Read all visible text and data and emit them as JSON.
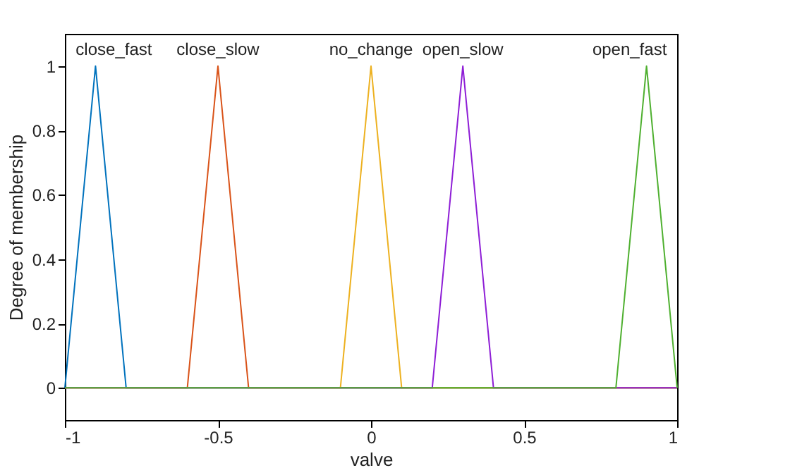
{
  "chart_data": {
    "type": "line",
    "xlabel": "valve",
    "ylabel": "Degree of membership",
    "xlim": [
      -1,
      1
    ],
    "xticks": [
      -1,
      -0.5,
      0,
      0.5,
      1
    ],
    "ylim": [
      -0.1,
      1.1
    ],
    "yticks": [
      0,
      0.2,
      0.4,
      0.6,
      0.8,
      1
    ],
    "grid": false,
    "legend": false,
    "marker": "none",
    "line_style": "solid",
    "series": [
      {
        "name": "close_fast",
        "color": "#0072bd",
        "x": [
          -1,
          -0.9,
          -0.8,
          1
        ],
        "values": [
          0,
          1,
          0,
          0
        ]
      },
      {
        "name": "close_slow",
        "color": "#d95319",
        "x": [
          -1,
          -0.6,
          -0.5,
          -0.4,
          1
        ],
        "values": [
          0,
          0,
          1,
          0,
          0
        ]
      },
      {
        "name": "no_change",
        "color": "#edb120",
        "x": [
          -1,
          -0.1,
          0,
          0.1,
          1
        ],
        "values": [
          0,
          0,
          1,
          0,
          0
        ]
      },
      {
        "name": "open_slow",
        "color": "#8e1ed6",
        "x": [
          -1,
          0.2,
          0.3,
          0.4,
          1
        ],
        "values": [
          0,
          0,
          1,
          0,
          0
        ]
      },
      {
        "name": "open_fast",
        "color": "#4fb030",
        "x": [
          -1,
          0.8,
          0.9,
          1
        ],
        "values": [
          0,
          0,
          1,
          0
        ]
      }
    ]
  }
}
